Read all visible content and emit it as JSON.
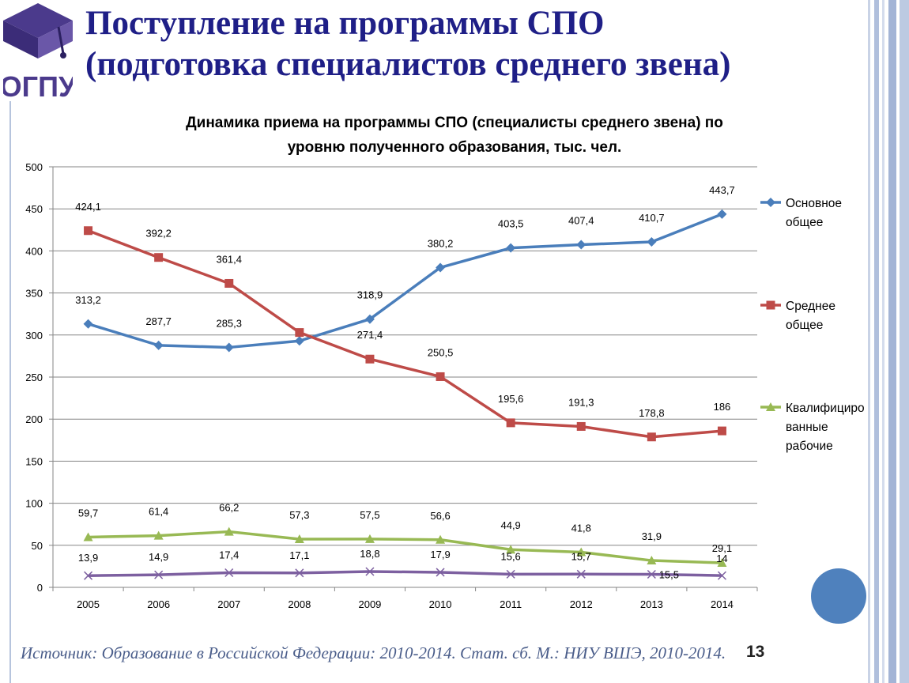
{
  "slide": {
    "title_line1": "Поступление на программы СПО",
    "title_line2": "(подготовка специалистов среднего звена)",
    "logo_text": "ОГПУ",
    "source": "Источник: Образование в Российской Федерации: 2010-2014. Стат. сб. М.: НИУ ВШЭ, 2010-2014.",
    "page_number": "13"
  },
  "chart_data": {
    "type": "line",
    "title_line1": "Динамика приема на программы СПО (специалисты среднего звена) по",
    "title_line2": "уровню полученного образования, тыс. чел.",
    "categories": [
      "2005",
      "2006",
      "2007",
      "2008",
      "2009",
      "2010",
      "2011",
      "2012",
      "2013",
      "2014"
    ],
    "ylim": [
      0,
      500
    ],
    "yticks": [
      0,
      50,
      100,
      150,
      200,
      250,
      300,
      350,
      400,
      450,
      500
    ],
    "grid": true,
    "legend_position": "right",
    "series": [
      {
        "name": "Основное общее",
        "legend_lines": [
          "Основное",
          "общее"
        ],
        "color": "#4a7ebb",
        "marker": "diamond",
        "values": [
          313.2,
          287.7,
          285.3,
          293.0,
          318.9,
          380.2,
          403.5,
          407.4,
          410.7,
          443.7
        ],
        "labels": [
          "313,2",
          "287,7",
          "285,3",
          null,
          "318,9",
          "380,2",
          "403,5",
          "407,4",
          "410,7",
          "443,7"
        ]
      },
      {
        "name": "Среднее общее",
        "legend_lines": [
          "Среднее",
          "общее"
        ],
        "color": "#be4b48",
        "marker": "square",
        "values": [
          424.1,
          392.2,
          361.4,
          303.0,
          271.4,
          250.5,
          195.6,
          191.3,
          178.8,
          186
        ],
        "labels": [
          "424,1",
          "392,2",
          "361,4",
          null,
          "271,4",
          "250,5",
          "195,6",
          "191,3",
          "178,8",
          "186"
        ]
      },
      {
        "name": "Квалифицированные рабочие",
        "legend_lines": [
          "Квалифициро",
          "ванные",
          "рабочие"
        ],
        "color": "#98b954",
        "marker": "triangle",
        "values": [
          59.7,
          61.4,
          66.2,
          57.3,
          57.5,
          56.6,
          44.9,
          41.8,
          31.9,
          29.1
        ],
        "labels": [
          "59,7",
          "61,4",
          "66,2",
          "57,3",
          "57,5",
          "56,6",
          "44,9",
          "41,8",
          "31,9",
          "29,1"
        ]
      },
      {
        "name": "",
        "legend_lines": [],
        "color": "#7d60a0",
        "marker": "x",
        "values": [
          13.9,
          14.9,
          17.4,
          17.1,
          18.8,
          17.9,
          15.6,
          15.7,
          15.5,
          14
        ],
        "labels": [
          "13,9",
          "14,9",
          "17,4",
          "17,1",
          "18,8",
          "17,9",
          "15,6",
          "15,7",
          "15,5",
          "14"
        ]
      }
    ]
  }
}
